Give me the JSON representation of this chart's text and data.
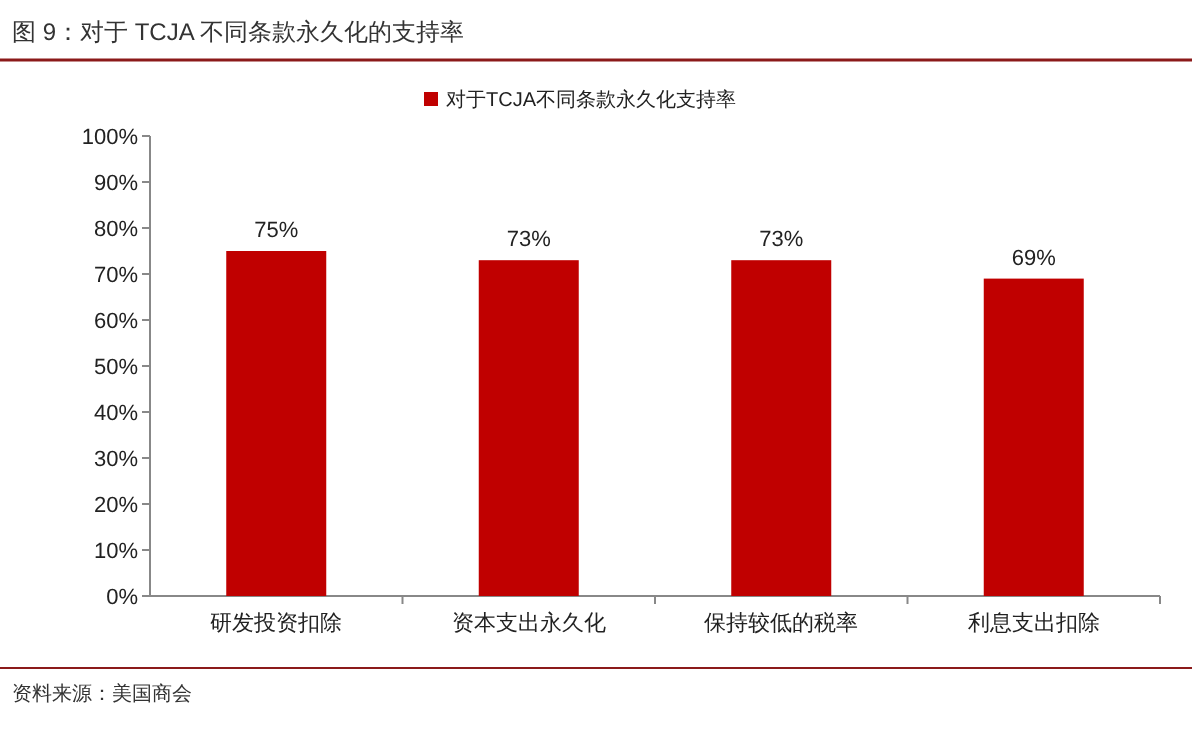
{
  "chart_data": {
    "type": "bar",
    "title": "图 9：对于 TCJA 不同条款永久化的支持率",
    "categories": [
      "研发投资扣除",
      "资本支出永久化",
      "保持较低的税率",
      "利息支出扣除"
    ],
    "series": [
      {
        "name": "对于TCJA不同条款永久化支持率",
        "color": "#c00000",
        "values": [
          75,
          73,
          73,
          69
        ],
        "value_labels": [
          "75%",
          "73%",
          "73%",
          "69%"
        ]
      }
    ],
    "ylim": [
      0,
      100
    ],
    "yticks": [
      {
        "value": 0,
        "label": "0%"
      },
      {
        "value": 10,
        "label": "10%"
      },
      {
        "value": 20,
        "label": "20%"
      },
      {
        "value": 30,
        "label": "30%"
      },
      {
        "value": 40,
        "label": "40%"
      },
      {
        "value": 50,
        "label": "50%"
      },
      {
        "value": 60,
        "label": "60%"
      },
      {
        "value": 70,
        "label": "70%"
      },
      {
        "value": 80,
        "label": "80%"
      },
      {
        "value": 90,
        "label": "90%"
      },
      {
        "value": 100,
        "label": "100%"
      }
    ],
    "legend": "top",
    "grid": false,
    "annotations": [
      "资料来源：美国商会"
    ]
  }
}
